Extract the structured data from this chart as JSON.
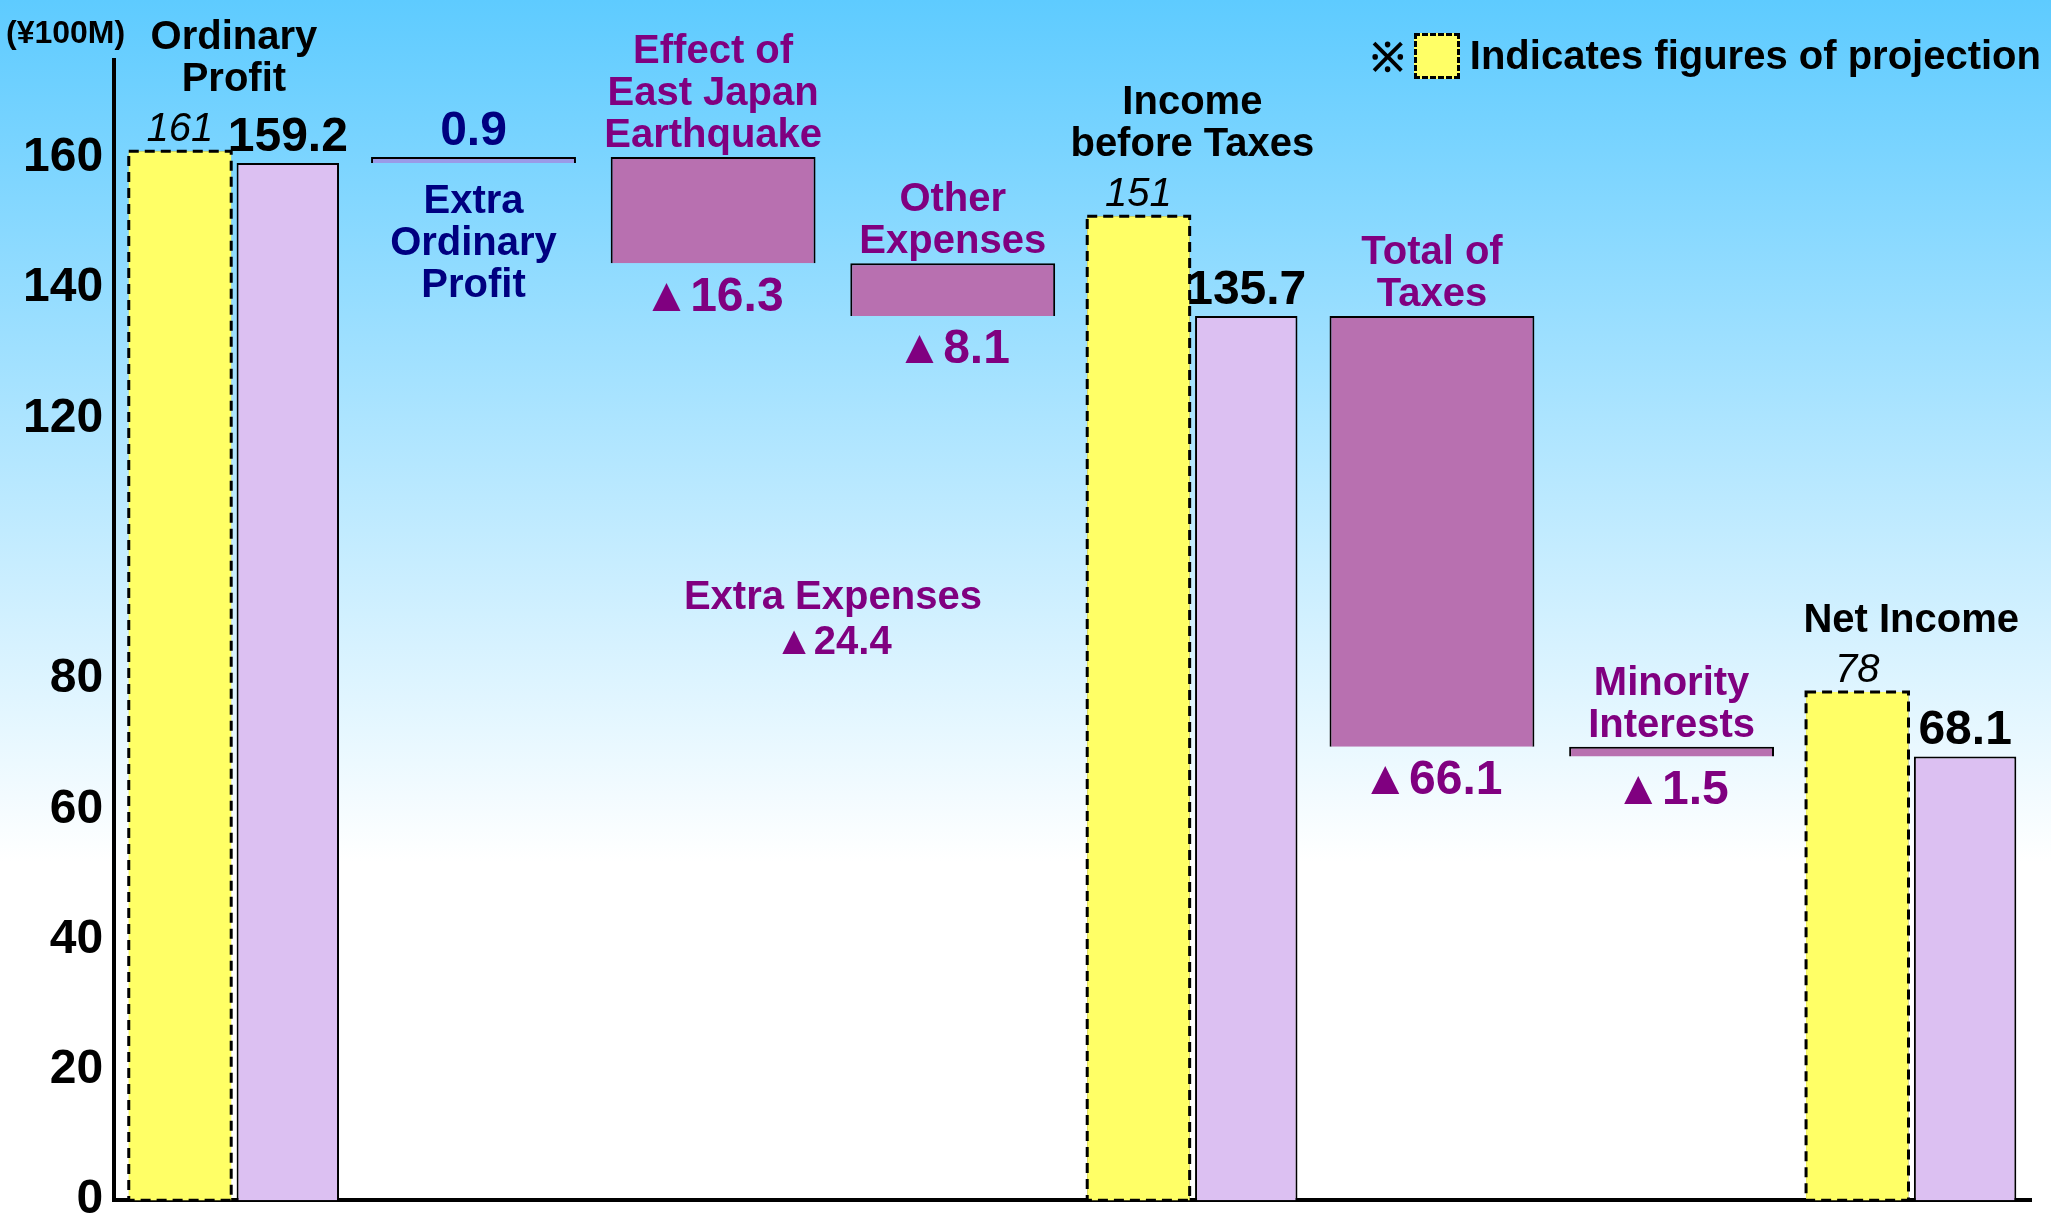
{
  "chart_data": {
    "type": "bar",
    "ylabel": "(¥100M)",
    "legend_title": "※",
    "legend": "top right",
    "tick_labels": "y",
    "categories": [
      "Ordinary Profit",
      "Extra Ordinary Profit",
      "Effect of East Japan Earthquake",
      "Other Expenses",
      "Income before Taxes",
      "Total of Taxes",
      "Minority Interests",
      "Net Income"
    ],
    "ylim": [
      0,
      175
    ],
    "yticks": [
      0,
      20,
      40,
      60,
      80,
      120,
      140,
      160
    ],
    "series": [
      {
        "name": "Indicates figures of projection",
        "color": "#ffff66",
        "values": [
          161,
          null,
          null,
          null,
          151,
          null,
          null,
          78
        ],
        "base": [
          0,
          null,
          null,
          null,
          0,
          null,
          null,
          0
        ],
        "value_labels": [
          "161",
          null,
          null,
          null,
          "151",
          null,
          null,
          "78"
        ]
      },
      {
        "colors": [
          "#dcc0f2",
          "#9a9ae8",
          "#b870b0",
          "#b870b0",
          "#dcc0f2",
          "#b870b0",
          "#b870b0",
          "#dcc0f2"
        ],
        "values": [
          159.2,
          0.9,
          -16.3,
          -8.1,
          135.7,
          -66.1,
          -1.5,
          68.1
        ],
        "base": [
          0,
          159.2,
          160.1,
          143.8,
          0,
          135.7,
          69.6,
          0
        ],
        "value_labels": [
          "159.2",
          "0.9",
          "▲16.3",
          "▲8.1",
          "135.7",
          "▲66.1",
          "▲1.5",
          "68.1"
        ]
      }
    ],
    "annotations": [
      "Extra Expenses ▲24.4"
    ]
  }
}
